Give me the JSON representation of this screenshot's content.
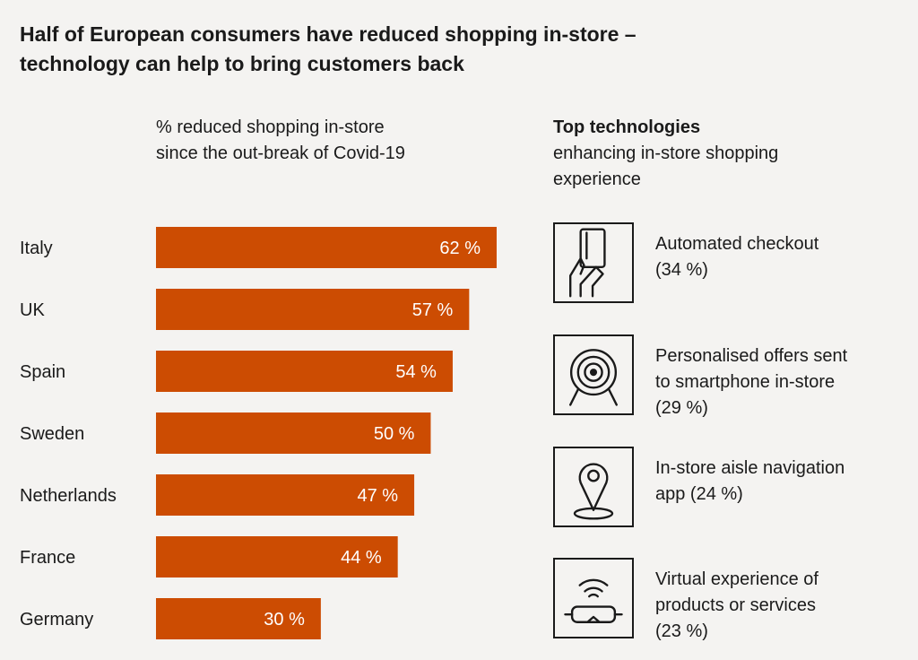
{
  "title": {
    "line1": "Half of European consumers have reduced shopping in-store –",
    "line2": "technology can help to bring customers back"
  },
  "chart_subtitle": {
    "line1": "% reduced shopping in-store",
    "line2": "since the out-break of Covid-19"
  },
  "tech_header": {
    "title": "Top technologies",
    "line1": "enhancing in-store shopping",
    "line2": "experience"
  },
  "colors": {
    "bar": "#cc4c02",
    "background": "#f4f3f1",
    "text": "#1a1a1a",
    "bar_label": "#ffffff"
  },
  "chart_data": {
    "type": "bar",
    "orientation": "horizontal",
    "title": "% reduced shopping in-store since the out-break of Covid-19",
    "categories": [
      "Italy",
      "UK",
      "Spain",
      "Sweden",
      "Netherlands",
      "France",
      "Germany"
    ],
    "values": [
      62,
      57,
      54,
      50,
      47,
      44,
      30
    ],
    "data_labels": [
      "62 %",
      "57 %",
      "54 %",
      "50 %",
      "47 %",
      "44 %",
      "30 %"
    ],
    "unit": "%",
    "xlim": [
      0,
      62
    ],
    "grid": false
  },
  "technologies": [
    {
      "icon": "card-hand-icon",
      "lines": [
        "Automated checkout",
        "(34 %)"
      ]
    },
    {
      "icon": "target-icon",
      "lines": [
        "Personalised offers sent",
        "to smartphone in-store",
        "(29 %)"
      ]
    },
    {
      "icon": "location-pin-icon",
      "lines": [
        "In-store aisle navigation",
        "app (24 %)"
      ]
    },
    {
      "icon": "vr-headset-icon",
      "lines": [
        "Virtual experience of",
        "products or services",
        "(23 %)"
      ]
    }
  ]
}
